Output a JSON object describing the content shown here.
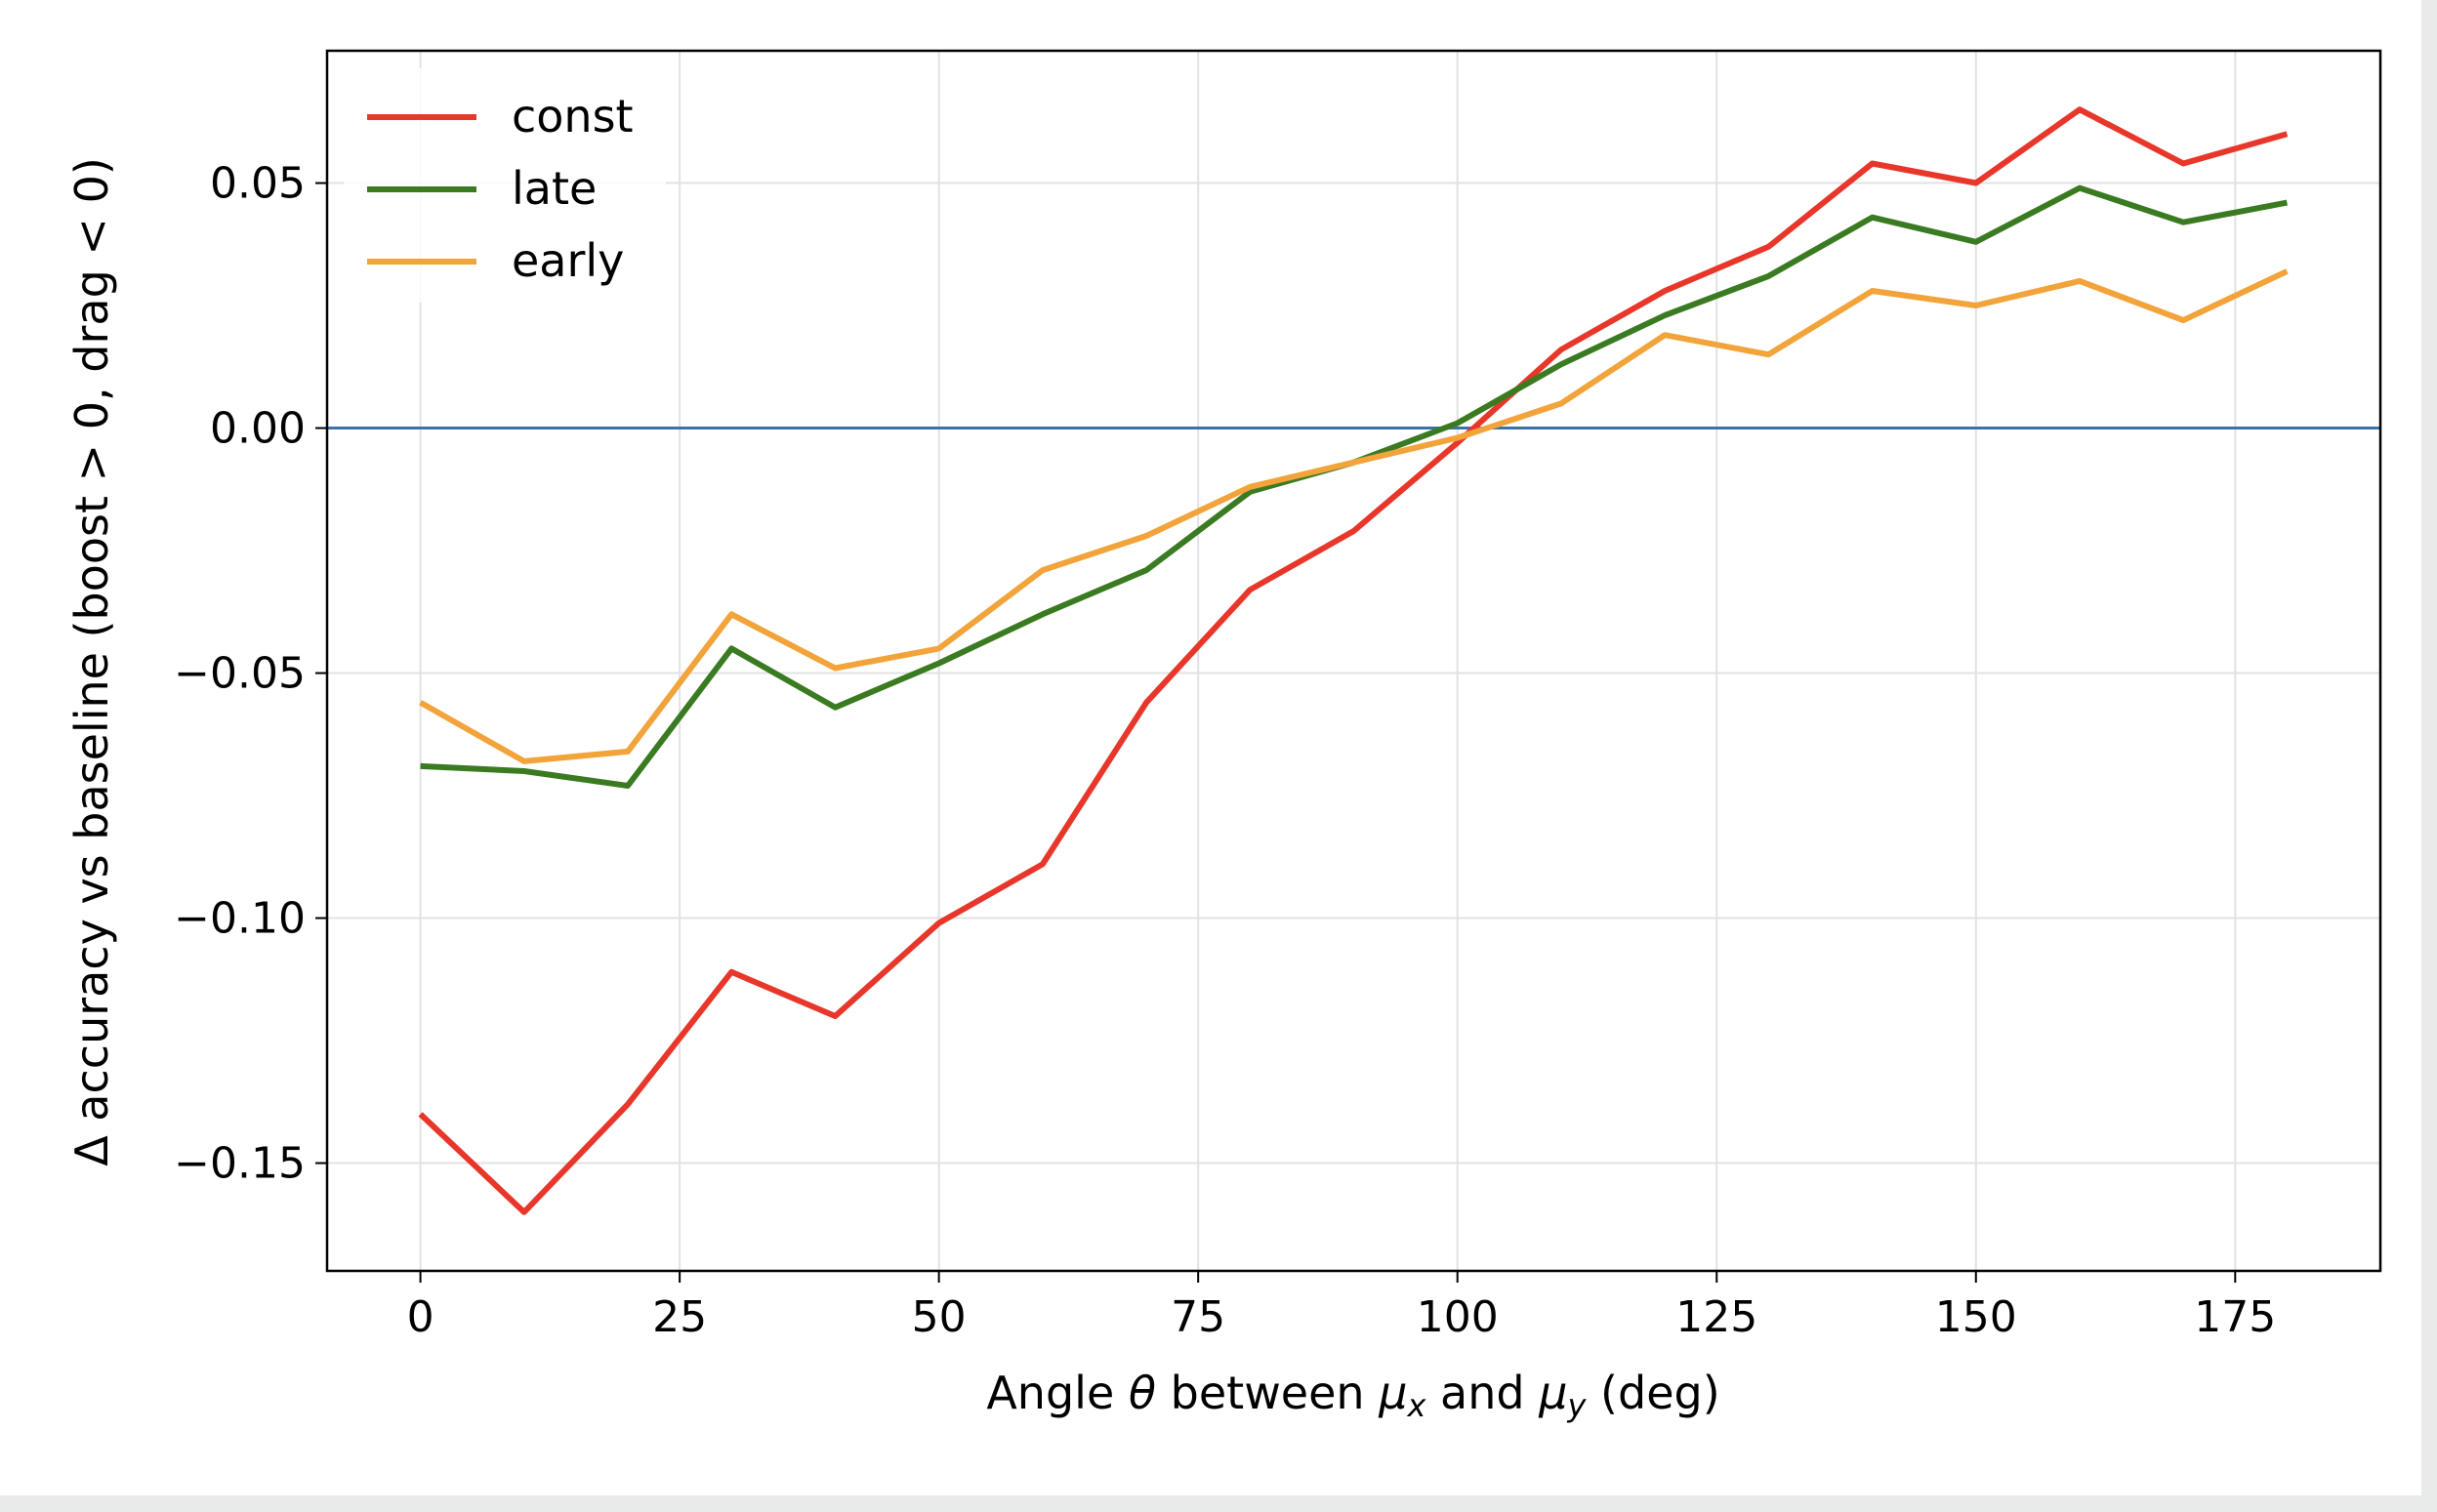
{
  "chart_data": {
    "type": "line",
    "xlabel": "Angle θ between μₓ and μᵧ (deg)",
    "xlabel_parts": {
      "prefix": "Angle ",
      "theta": "θ",
      "middle": " between ",
      "mu1": "μ",
      "sub1": "x",
      "and": " and ",
      "mu2": "μ",
      "sub2": "y",
      "suffix": " (deg)"
    },
    "ylabel": "Δ accuracy vs baseline (boost > 0, drag < 0)",
    "xlim": [
      -9,
      189
    ],
    "ylim": [
      -0.172,
      0.077
    ],
    "xticks": [
      0,
      25,
      50,
      75,
      100,
      125,
      150,
      175
    ],
    "xtick_labels": [
      "0",
      "25",
      "50",
      "75",
      "100",
      "125",
      "150",
      "175"
    ],
    "yticks": [
      -0.15,
      -0.1,
      -0.05,
      0.0,
      0.05
    ],
    "ytick_labels": [
      "−0.15",
      "−0.10",
      "−0.05",
      "0.00",
      "0.05"
    ],
    "grid": true,
    "legend_position": "top-left",
    "reference_line": {
      "y": 0,
      "color": "#3b73a8"
    },
    "x": [
      0,
      10,
      20,
      30,
      40,
      50,
      60,
      70,
      80,
      90,
      100,
      110,
      120,
      130,
      140,
      150,
      160,
      170,
      180
    ],
    "series": [
      {
        "name": "const",
        "color": "#e8372a",
        "values": [
          -0.14,
          -0.16,
          -0.138,
          -0.111,
          -0.12,
          -0.101,
          -0.089,
          -0.056,
          -0.033,
          -0.021,
          -0.003,
          0.016,
          0.028,
          0.037,
          0.054,
          0.05,
          0.065,
          0.054,
          0.06
        ]
      },
      {
        "name": "late",
        "color": "#3a7b22",
        "values": [
          -0.069,
          -0.07,
          -0.073,
          -0.045,
          -0.057,
          -0.048,
          -0.038,
          -0.029,
          -0.013,
          -0.007,
          0.001,
          0.013,
          0.023,
          0.031,
          0.043,
          0.038,
          0.049,
          0.042,
          0.046
        ]
      },
      {
        "name": "early",
        "color": "#f2a33a",
        "values": [
          -0.056,
          -0.068,
          -0.066,
          -0.038,
          -0.049,
          -0.045,
          -0.029,
          -0.022,
          -0.012,
          -0.007,
          -0.002,
          0.005,
          0.019,
          0.015,
          0.028,
          0.025,
          0.03,
          0.022,
          0.032
        ]
      }
    ]
  }
}
